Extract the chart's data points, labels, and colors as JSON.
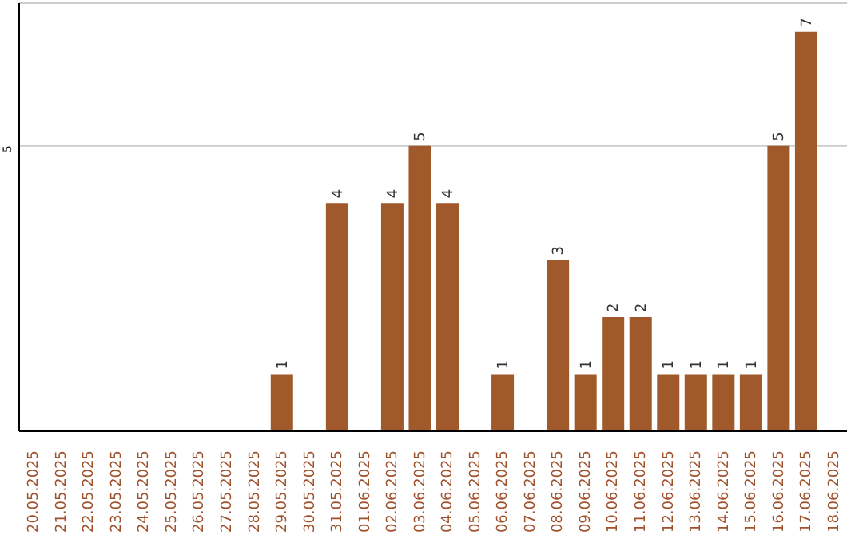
{
  "chart_data": {
    "type": "bar",
    "categories": [
      "20.05.2025",
      "21.05.2025",
      "22.05.2025",
      "23.05.2025",
      "24.05.2025",
      "25.05.2025",
      "26.05.2025",
      "27.05.2025",
      "28.05.2025",
      "29.05.2025",
      "30.05.2025",
      "31.05.2025",
      "01.06.2025",
      "02.06.2025",
      "03.06.2025",
      "04.06.2025",
      "05.06.2025",
      "06.06.2025",
      "07.06.2025",
      "08.06.2025",
      "09.06.2025",
      "10.06.2025",
      "11.06.2025",
      "12.06.2025",
      "13.06.2025",
      "14.06.2025",
      "15.06.2025",
      "16.06.2025",
      "17.06.2025",
      "18.06.2025"
    ],
    "values": [
      0,
      0,
      0,
      0,
      0,
      0,
      0,
      0,
      0,
      1,
      0,
      4,
      0,
      4,
      5,
      4,
      0,
      1,
      0,
      3,
      1,
      2,
      2,
      1,
      1,
      1,
      1,
      5,
      7,
      0
    ],
    "value_labels": [
      null,
      null,
      null,
      null,
      null,
      null,
      null,
      null,
      null,
      "1",
      null,
      "4",
      null,
      "4",
      "5",
      "4",
      null,
      "1",
      null,
      "3",
      "1",
      "2",
      "2",
      "1",
      "1",
      "1",
      "1",
      "5",
      "7",
      null
    ],
    "color": "#a0592a",
    "ylim": [
      0,
      7.5
    ],
    "yticks": [
      5
    ],
    "grid": "y",
    "legend": false
  }
}
